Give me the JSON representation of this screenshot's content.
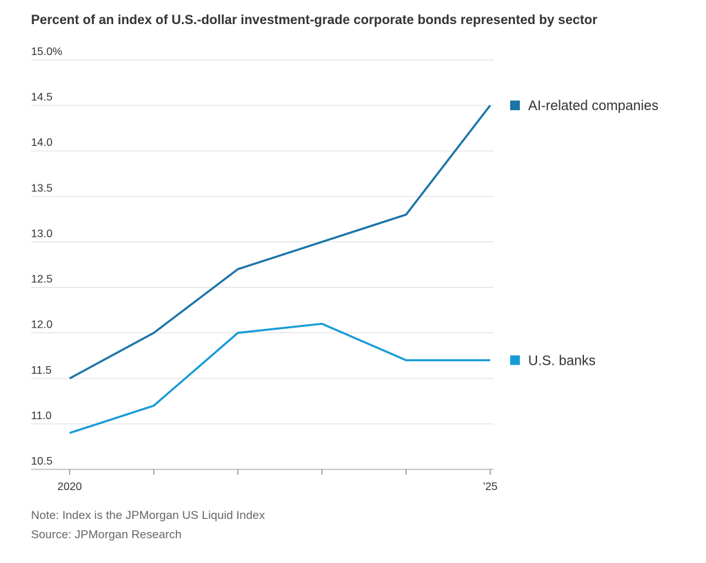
{
  "chart_data": {
    "type": "line",
    "title": "Percent of an index of U.S.-dollar investment-grade corporate bonds represented by sector",
    "categories": [
      "2020",
      null,
      null,
      null,
      null,
      "’25"
    ],
    "series": [
      {
        "name": "AI-related companies",
        "color": "#1a74a8",
        "values": [
          11.5,
          12.0,
          12.7,
          13.0,
          13.3,
          14.5
        ]
      },
      {
        "name": "U.S. banks",
        "color": "#179bd7",
        "values": [
          10.9,
          11.2,
          12.0,
          12.1,
          11.7,
          11.7
        ]
      }
    ],
    "ylim": [
      10.5,
      15.0
    ],
    "yticks": [
      10.5,
      {
        "value": 11,
        "label": "11.0"
      },
      11.5,
      {
        "value": 12,
        "label": "12.0"
      },
      12.5,
      {
        "value": 13,
        "label": "13.0"
      },
      13.5,
      {
        "value": 14,
        "label": "14.0"
      },
      14.5,
      {
        "value": 15,
        "label": "15.0%"
      }
    ],
    "grid": true,
    "note": "Note: Index is the JPMorgan US Liquid Index",
    "source": "Source: JPMorgan Research"
  }
}
